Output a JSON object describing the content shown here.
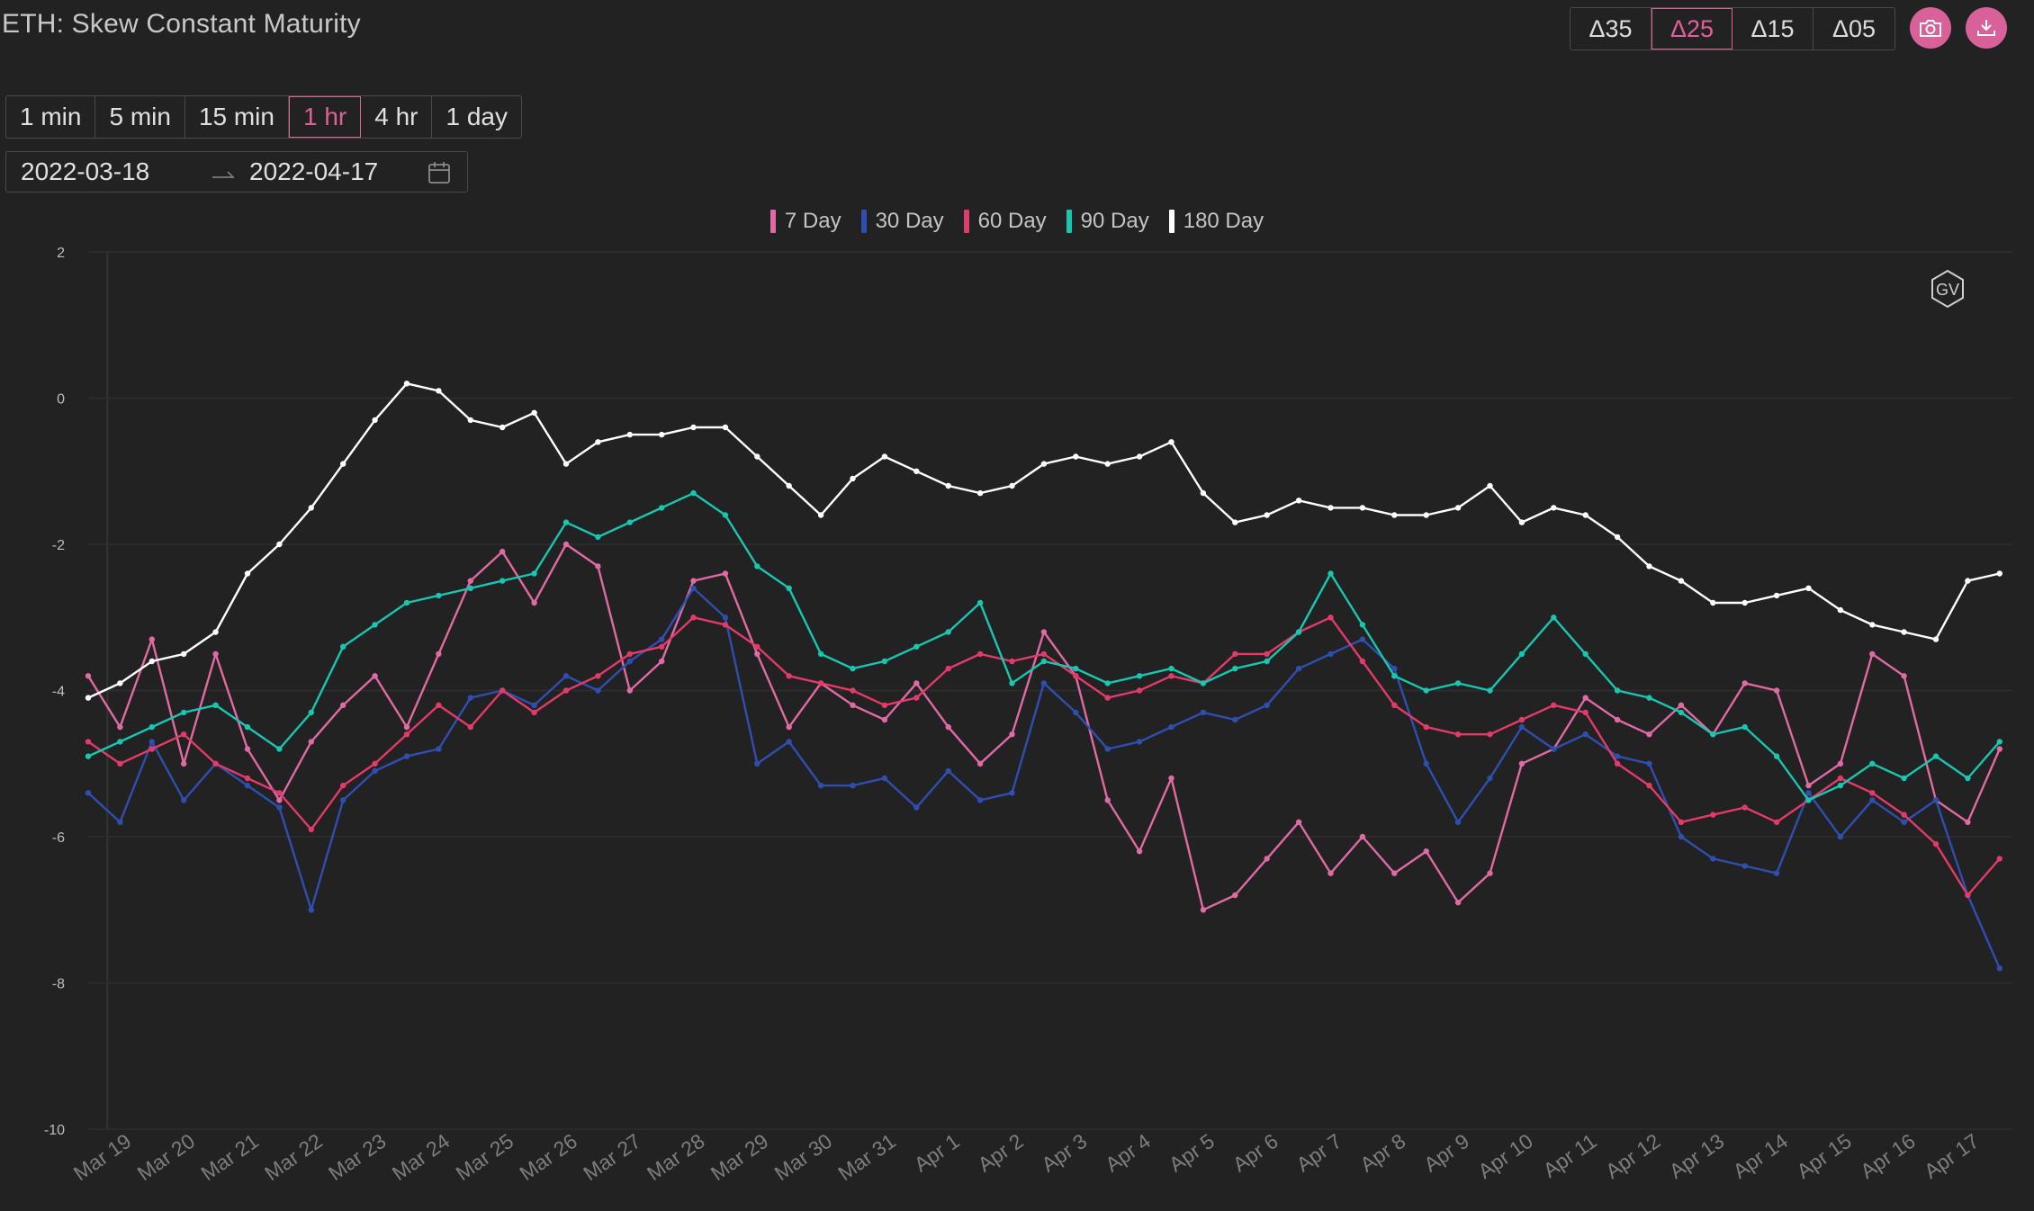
{
  "title": "ETH: Skew Constant Maturity",
  "deltas": [
    {
      "label": "Δ35",
      "active": false
    },
    {
      "label": "Δ25",
      "active": true
    },
    {
      "label": "Δ15",
      "active": false
    },
    {
      "label": "Δ05",
      "active": false
    }
  ],
  "icons": {
    "camera": "camera-icon",
    "download": "download-icon",
    "calendar": "calendar-icon",
    "arrow": "arrow-right-icon",
    "watermark": "gv-logo-icon"
  },
  "timeframes": [
    {
      "label": "1 min",
      "active": false
    },
    {
      "label": "5 min",
      "active": false
    },
    {
      "label": "15 min",
      "active": false
    },
    {
      "label": "1 hr",
      "active": true
    },
    {
      "label": "4 hr",
      "active": false
    },
    {
      "label": "1 day",
      "active": false
    }
  ],
  "date_range": {
    "start": "2022-03-18",
    "end": "2022-04-17"
  },
  "watermark_text": "GV",
  "colors": {
    "background": "#222222",
    "accent": "#e0609a",
    "seven_day": "#e06aa3",
    "thirty_day": "#2f4fb0",
    "sixty_day": "#e23a69",
    "ninety_day": "#19c6b0",
    "one_eighty_day": "#ffffff"
  },
  "chart_data": {
    "type": "line",
    "title": "ETH: Skew Constant Maturity",
    "xlabel": "",
    "ylabel": "",
    "ylim": [
      -10,
      2
    ],
    "yticks": [
      2,
      0,
      -2,
      -4,
      -6,
      -8,
      -10
    ],
    "xlim": [
      0,
      30.2
    ],
    "xtick_labels": [
      "Mar 19",
      "Mar 20",
      "Mar 21",
      "Mar 22",
      "Mar 23",
      "Mar 24",
      "Mar 25",
      "Mar 26",
      "Mar 27",
      "Mar 28",
      "Mar 29",
      "Mar 30",
      "Mar 31",
      "Apr 1",
      "Apr 2",
      "Apr 3",
      "Apr 4",
      "Apr 5",
      "Apr 6",
      "Apr 7",
      "Apr 8",
      "Apr 9",
      "Apr 10",
      "Apr 11",
      "Apr 12",
      "Apr 13",
      "Apr 14",
      "Apr 15",
      "Apr 16",
      "Apr 17"
    ],
    "grid": true,
    "legend_position": "top-center",
    "x": [
      0.0,
      0.5,
      1.0,
      1.5,
      2.0,
      2.5,
      3.0,
      3.5,
      4.0,
      4.5,
      5.0,
      5.5,
      6.0,
      6.5,
      7.0,
      7.5,
      8.0,
      8.5,
      9.0,
      9.5,
      10.0,
      10.5,
      11.0,
      11.5,
      12.0,
      12.5,
      13.0,
      13.5,
      14.0,
      14.5,
      15.0,
      15.5,
      16.0,
      16.5,
      17.0,
      17.5,
      18.0,
      18.5,
      19.0,
      19.5,
      20.0,
      20.5,
      21.0,
      21.5,
      22.0,
      22.5,
      23.0,
      23.5,
      24.0,
      24.5,
      25.0,
      25.5,
      26.0,
      26.5,
      27.0,
      27.5,
      28.0,
      28.5,
      29.0,
      29.5,
      30.0
    ],
    "series": [
      {
        "name": "7 Day",
        "color": "#e06aa3",
        "values": [
          -3.8,
          -4.5,
          -3.3,
          -5.0,
          -3.5,
          -4.8,
          -5.5,
          -4.7,
          -4.2,
          -3.8,
          -4.5,
          -3.5,
          -2.5,
          -2.1,
          -2.8,
          -2.0,
          -2.3,
          -4.0,
          -3.6,
          -2.5,
          -2.4,
          -3.5,
          -4.5,
          -3.9,
          -4.2,
          -4.4,
          -3.9,
          -4.5,
          -5.0,
          -4.6,
          -3.2,
          -3.8,
          -5.5,
          -6.2,
          -5.2,
          -7.0,
          -6.8,
          -6.3,
          -5.8,
          -6.5,
          -6.0,
          -6.5,
          -6.2,
          -6.9,
          -6.5,
          -5.0,
          -4.8,
          -4.1,
          -4.4,
          -4.6,
          -4.2,
          -4.6,
          -3.9,
          -4.0,
          -5.3,
          -5.0,
          -3.5,
          -3.8,
          -5.5,
          -5.8,
          -4.8
        ]
      },
      {
        "name": "30 Day",
        "color": "#2f4fb0",
        "values": [
          -5.4,
          -5.8,
          -4.7,
          -5.5,
          -5.0,
          -5.3,
          -5.6,
          -7.0,
          -5.5,
          -5.1,
          -4.9,
          -4.8,
          -4.1,
          -4.0,
          -4.2,
          -3.8,
          -4.0,
          -3.6,
          -3.3,
          -2.6,
          -3.0,
          -5.0,
          -4.7,
          -5.3,
          -5.3,
          -5.2,
          -5.6,
          -5.1,
          -5.5,
          -5.4,
          -3.9,
          -4.3,
          -4.8,
          -4.7,
          -4.5,
          -4.3,
          -4.4,
          -4.2,
          -3.7,
          -3.5,
          -3.3,
          -3.7,
          -5.0,
          -5.8,
          -5.2,
          -4.5,
          -4.8,
          -4.6,
          -4.9,
          -5.0,
          -6.0,
          -6.3,
          -6.4,
          -6.5,
          -5.4,
          -6.0,
          -5.5,
          -5.8,
          -5.5,
          -6.8,
          -7.8
        ]
      },
      {
        "name": "60 Day",
        "color": "#e23a69",
        "values": [
          -4.7,
          -5.0,
          -4.8,
          -4.6,
          -5.0,
          -5.2,
          -5.4,
          -5.9,
          -5.3,
          -5.0,
          -4.6,
          -4.2,
          -4.5,
          -4.0,
          -4.3,
          -4.0,
          -3.8,
          -3.5,
          -3.4,
          -3.0,
          -3.1,
          -3.4,
          -3.8,
          -3.9,
          -4.0,
          -4.2,
          -4.1,
          -3.7,
          -3.5,
          -3.6,
          -3.5,
          -3.8,
          -4.1,
          -4.0,
          -3.8,
          -3.9,
          -3.5,
          -3.5,
          -3.2,
          -3.0,
          -3.6,
          -4.2,
          -4.5,
          -4.6,
          -4.6,
          -4.4,
          -4.2,
          -4.3,
          -5.0,
          -5.3,
          -5.8,
          -5.7,
          -5.6,
          -5.8,
          -5.5,
          -5.2,
          -5.4,
          -5.7,
          -6.1,
          -6.8,
          -6.3
        ]
      },
      {
        "name": "90 Day",
        "color": "#19c6b0",
        "values": [
          -4.9,
          -4.7,
          -4.5,
          -4.3,
          -4.2,
          -4.5,
          -4.8,
          -4.3,
          -3.4,
          -3.1,
          -2.8,
          -2.7,
          -2.6,
          -2.5,
          -2.4,
          -1.7,
          -1.9,
          -1.7,
          -1.5,
          -1.3,
          -1.6,
          -2.3,
          -2.6,
          -3.5,
          -3.7,
          -3.6,
          -3.4,
          -3.2,
          -2.8,
          -3.9,
          -3.6,
          -3.7,
          -3.9,
          -3.8,
          -3.7,
          -3.9,
          -3.7,
          -3.6,
          -3.2,
          -2.4,
          -3.1,
          -3.8,
          -4.0,
          -3.9,
          -4.0,
          -3.5,
          -3.0,
          -3.5,
          -4.0,
          -4.1,
          -4.3,
          -4.6,
          -4.5,
          -4.9,
          -5.5,
          -5.3,
          -5.0,
          -5.2,
          -4.9,
          -5.2,
          -4.7
        ]
      },
      {
        "name": "180 Day",
        "color": "#ffffff",
        "values": [
          -4.1,
          -3.9,
          -3.6,
          -3.5,
          -3.2,
          -2.4,
          -2.0,
          -1.5,
          -0.9,
          -0.3,
          0.2,
          0.1,
          -0.3,
          -0.4,
          -0.2,
          -0.9,
          -0.6,
          -0.5,
          -0.5,
          -0.4,
          -0.4,
          -0.8,
          -1.2,
          -1.6,
          -1.1,
          -0.8,
          -1.0,
          -1.2,
          -1.3,
          -1.2,
          -0.9,
          -0.8,
          -0.9,
          -0.8,
          -0.6,
          -1.3,
          -1.7,
          -1.6,
          -1.4,
          -1.5,
          -1.5,
          -1.6,
          -1.6,
          -1.5,
          -1.2,
          -1.7,
          -1.5,
          -1.6,
          -1.9,
          -2.3,
          -2.5,
          -2.8,
          -2.8,
          -2.7,
          -2.6,
          -2.9,
          -3.1,
          -3.2,
          -3.3,
          -2.5,
          -2.4
        ]
      }
    ]
  }
}
